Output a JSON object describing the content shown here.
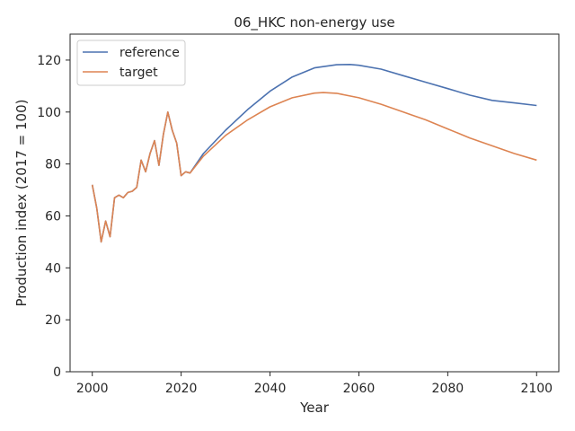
{
  "chart_data": {
    "type": "line",
    "title": "06_HKC non-energy use",
    "xlabel": "Year",
    "ylabel": "Production index (2017 = 100)",
    "xlim": [
      1995,
      2105
    ],
    "ylim": [
      0,
      130
    ],
    "xticks": [
      2000,
      2020,
      2040,
      2060,
      2080,
      2100
    ],
    "yticks": [
      0,
      20,
      40,
      60,
      80,
      100,
      120
    ],
    "legend_position": "upper-left",
    "grid": false,
    "series": [
      {
        "name": "reference",
        "color": "#4c72b0",
        "x": [
          2000,
          2001,
          2002,
          2003,
          2004,
          2005,
          2006,
          2007,
          2008,
          2009,
          2010,
          2011,
          2012,
          2013,
          2014,
          2015,
          2016,
          2017,
          2018,
          2019,
          2020,
          2021,
          2022,
          2025,
          2030,
          2035,
          2040,
          2045,
          2050,
          2055,
          2058,
          2060,
          2065,
          2070,
          2075,
          2080,
          2085,
          2090,
          2095,
          2100
        ],
        "y": [
          72,
          63,
          50,
          58,
          52,
          67,
          68,
          67,
          69,
          69.5,
          71,
          81.5,
          77,
          84,
          89,
          79.5,
          91.5,
          100,
          93,
          88,
          75.5,
          77,
          76.5,
          84,
          93,
          101,
          108,
          113.5,
          117,
          118.2,
          118.3,
          118,
          116.5,
          114,
          111.5,
          109,
          106.5,
          104.5,
          103.5,
          102.5
        ]
      },
      {
        "name": "target",
        "color": "#dd8452",
        "x": [
          2000,
          2001,
          2002,
          2003,
          2004,
          2005,
          2006,
          2007,
          2008,
          2009,
          2010,
          2011,
          2012,
          2013,
          2014,
          2015,
          2016,
          2017,
          2018,
          2019,
          2020,
          2021,
          2022,
          2025,
          2030,
          2035,
          2040,
          2045,
          2050,
          2052,
          2055,
          2060,
          2065,
          2070,
          2075,
          2080,
          2085,
          2090,
          2095,
          2100
        ],
        "y": [
          72,
          63,
          50,
          58,
          52,
          67,
          68,
          67,
          69,
          69.5,
          71,
          81.5,
          77,
          84,
          89,
          79.5,
          91.5,
          100,
          93,
          88,
          75.5,
          77,
          76.5,
          83,
          91,
          97,
          102,
          105.5,
          107.3,
          107.5,
          107.2,
          105.5,
          103,
          100,
          97,
          93.5,
          90,
          87,
          84,
          81.5
        ]
      }
    ]
  }
}
